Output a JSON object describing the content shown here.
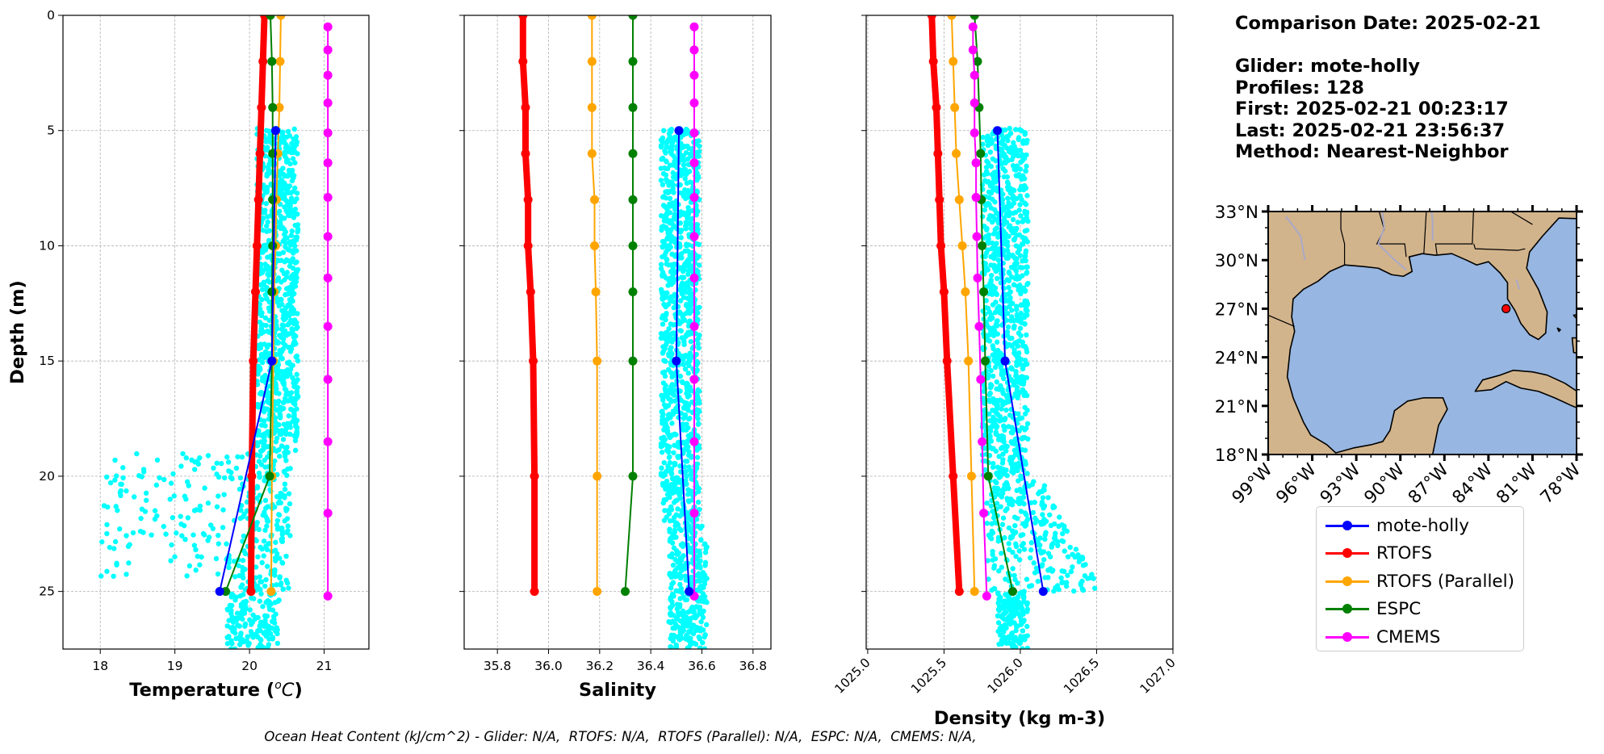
{
  "info": {
    "comparison_date": "Comparison Date: 2025-02-21",
    "glider": "Glider: mote-holly",
    "profiles": "Profiles: 128",
    "first": "First: 2025-02-21 00:23:17",
    "last": "Last: 2025-02-21 23:56:37",
    "method": "Method: Nearest-Neighbor"
  },
  "footer": "Ocean Heat Content (kJ/cm^2) - Glider: N/A,  RTOFS: N/A,  RTOFS (Parallel): N/A,  ESPC: N/A,  CMEMS: N/A,",
  "legend": [
    {
      "label": "mote-holly",
      "color": "#0000ff"
    },
    {
      "label": "RTOFS",
      "color": "#ff0000"
    },
    {
      "label": "RTOFS (Parallel)",
      "color": "#ffa500"
    },
    {
      "label": "ESPC",
      "color": "#008000"
    },
    {
      "label": "CMEMS",
      "color": "#ff00ff"
    }
  ],
  "colors": {
    "glider_scatter": "#00ffff",
    "land": "#d2b48c",
    "ocean": "#97b6e1",
    "glider_position": "#ff0000"
  },
  "chart_data": [
    {
      "type": "scatter",
      "title": "",
      "xlabel": "Temperature (°C)",
      "ylabel": "Depth (m)",
      "xlim": [
        17.5,
        21.6
      ],
      "ylim": [
        27.5,
        0
      ],
      "xticks": [
        18,
        19,
        20,
        21
      ],
      "yticks": [
        0,
        5,
        10,
        15,
        20,
        25
      ],
      "grid": true,
      "glider_scatter_bounds": {
        "x": [
          18.0,
          20.7
        ],
        "depth": [
          4.9,
          27.5
        ]
      },
      "series": [
        {
          "name": "mote-holly",
          "depth": [
            5,
            15,
            25
          ],
          "values": [
            20.35,
            20.3,
            19.6
          ],
          "linewidth": 2
        },
        {
          "name": "RTOFS",
          "depth": [
            0,
            2,
            4,
            6,
            8,
            10,
            12,
            15,
            20,
            25
          ],
          "values": [
            20.2,
            20.18,
            20.16,
            20.14,
            20.12,
            20.1,
            20.08,
            20.05,
            20.03,
            20.02
          ],
          "linewidth": 8
        },
        {
          "name": "RTOFS (Parallel)",
          "depth": [
            0,
            2,
            4,
            6,
            8,
            10,
            12,
            15,
            20,
            25
          ],
          "values": [
            20.42,
            20.41,
            20.4,
            20.38,
            20.36,
            20.35,
            20.33,
            20.32,
            20.3,
            20.29
          ],
          "linewidth": 2
        },
        {
          "name": "ESPC",
          "depth": [
            0,
            2,
            4,
            6,
            8,
            10,
            12,
            15,
            20,
            25
          ],
          "values": [
            20.28,
            20.3,
            20.31,
            20.31,
            20.31,
            20.31,
            20.3,
            20.3,
            20.27,
            19.68
          ],
          "linewidth": 2
        },
        {
          "name": "CMEMS",
          "depth": [
            0.5,
            1.5,
            2.6,
            3.8,
            5.1,
            6.4,
            7.9,
            9.6,
            11.4,
            13.5,
            15.8,
            18.5,
            21.6,
            25.2
          ],
          "values": [
            21.05,
            21.05,
            21.05,
            21.05,
            21.05,
            21.05,
            21.05,
            21.05,
            21.05,
            21.05,
            21.05,
            21.05,
            21.05,
            21.05
          ],
          "linewidth": 2
        }
      ]
    },
    {
      "type": "scatter",
      "title": "",
      "xlabel": "Salinity",
      "ylabel": "",
      "xlim": [
        35.67,
        36.87
      ],
      "ylim": [
        27.5,
        0
      ],
      "xticks": [
        35.8,
        36.0,
        36.2,
        36.4,
        36.6,
        36.8
      ],
      "yticks": [
        0,
        5,
        10,
        15,
        20,
        25
      ],
      "grid": true,
      "glider_scatter_bounds": {
        "x": [
          36.43,
          36.62
        ],
        "depth": [
          4.9,
          27.5
        ]
      },
      "series": [
        {
          "name": "mote-holly",
          "depth": [
            5,
            15,
            25
          ],
          "values": [
            36.51,
            36.5,
            36.55
          ],
          "linewidth": 2
        },
        {
          "name": "RTOFS",
          "depth": [
            0,
            2,
            4,
            6,
            8,
            10,
            12,
            15,
            20,
            25
          ],
          "values": [
            35.9,
            35.9,
            35.91,
            35.91,
            35.92,
            35.92,
            35.93,
            35.94,
            35.945,
            35.945
          ],
          "linewidth": 8
        },
        {
          "name": "RTOFS (Parallel)",
          "depth": [
            0,
            2,
            4,
            6,
            8,
            10,
            12,
            15,
            20,
            25
          ],
          "values": [
            36.17,
            36.17,
            36.17,
            36.17,
            36.18,
            36.18,
            36.185,
            36.19,
            36.19,
            36.19
          ],
          "linewidth": 2
        },
        {
          "name": "ESPC",
          "depth": [
            0,
            2,
            4,
            6,
            8,
            10,
            12,
            15,
            20,
            25
          ],
          "values": [
            36.33,
            36.33,
            36.33,
            36.33,
            36.33,
            36.33,
            36.33,
            36.33,
            36.33,
            36.3
          ],
          "linewidth": 2
        },
        {
          "name": "CMEMS",
          "depth": [
            0.5,
            1.5,
            2.6,
            3.8,
            5.1,
            6.4,
            7.9,
            9.6,
            11.4,
            13.5,
            15.8,
            18.5,
            21.6,
            25.2
          ],
          "values": [
            36.57,
            36.57,
            36.57,
            36.57,
            36.57,
            36.57,
            36.57,
            36.57,
            36.57,
            36.57,
            36.57,
            36.57,
            36.57,
            36.57
          ],
          "linewidth": 2
        }
      ]
    },
    {
      "type": "scatter",
      "title": "",
      "xlabel": "Density (kg m-3)",
      "ylabel": "",
      "xlim": [
        1024.99,
        1027.0
      ],
      "ylim": [
        27.5,
        0
      ],
      "xticks": [
        1025.0,
        1025.5,
        1026.0,
        1026.5,
        1027.0
      ],
      "yticks": [
        0,
        5,
        10,
        15,
        20,
        25
      ],
      "tick_rotation": 45,
      "grid": true,
      "glider_scatter_bounds": {
        "x": [
          1025.72,
          1026.5
        ],
        "depth": [
          4.9,
          27.5
        ]
      },
      "series": [
        {
          "name": "mote-holly",
          "depth": [
            5,
            15,
            25
          ],
          "values": [
            1025.85,
            1025.9,
            1026.15
          ],
          "linewidth": 2
        },
        {
          "name": "RTOFS",
          "depth": [
            0,
            2,
            4,
            6,
            8,
            10,
            12,
            15,
            20,
            25
          ],
          "values": [
            1025.42,
            1025.43,
            1025.45,
            1025.46,
            1025.47,
            1025.48,
            1025.5,
            1025.52,
            1025.56,
            1025.6
          ],
          "linewidth": 8
        },
        {
          "name": "RTOFS (Parallel)",
          "depth": [
            0,
            2,
            4,
            6,
            8,
            10,
            12,
            15,
            20,
            25
          ],
          "values": [
            1025.55,
            1025.56,
            1025.57,
            1025.58,
            1025.6,
            1025.62,
            1025.64,
            1025.66,
            1025.68,
            1025.7
          ],
          "linewidth": 2
        },
        {
          "name": "ESPC",
          "depth": [
            0,
            2,
            4,
            6,
            8,
            10,
            12,
            15,
            20,
            25
          ],
          "values": [
            1025.7,
            1025.72,
            1025.73,
            1025.74,
            1025.745,
            1025.75,
            1025.76,
            1025.77,
            1025.79,
            1025.95
          ],
          "linewidth": 2
        },
        {
          "name": "CMEMS",
          "depth": [
            0.5,
            1.5,
            2.6,
            3.8,
            5.1,
            6.4,
            7.9,
            9.6,
            11.4,
            13.5,
            15.8,
            18.5,
            21.6,
            25.2
          ],
          "values": [
            1025.69,
            1025.69,
            1025.7,
            1025.7,
            1025.7,
            1025.71,
            1025.71,
            1025.715,
            1025.72,
            1025.73,
            1025.74,
            1025.75,
            1025.76,
            1025.78
          ],
          "linewidth": 2
        }
      ]
    },
    {
      "type": "map",
      "title": "",
      "lon_range": [
        -99,
        -78
      ],
      "lat_range": [
        18,
        33
      ],
      "xticks": [
        "99°W",
        "96°W",
        "93°W",
        "90°W",
        "87°W",
        "84°W",
        "81°W",
        "78°W"
      ],
      "yticks": [
        "18°N",
        "21°N",
        "24°N",
        "27°N",
        "30°N",
        "33°N"
      ],
      "glider_position": {
        "lon": -82.8,
        "lat": 27.0
      }
    }
  ]
}
